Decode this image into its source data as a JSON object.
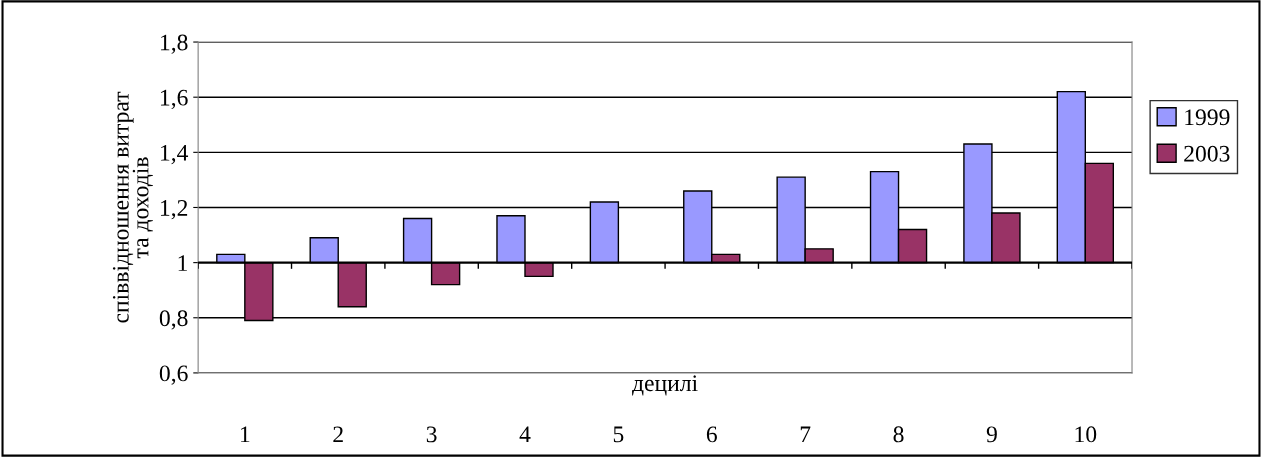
{
  "chart_data": {
    "type": "bar",
    "ylabel": "співвідношення витрат\nта доходів",
    "xlabel": "децилі",
    "categories": [
      "1",
      "2",
      "3",
      "4",
      "5",
      "6",
      "7",
      "8",
      "9",
      "10"
    ],
    "series": [
      {
        "name": "1999",
        "color": "#9999ff",
        "base": [
          1,
          1,
          1,
          1,
          1,
          1,
          1,
          1,
          1,
          1
        ],
        "values": [
          0.03,
          0.09,
          0.16,
          0.17,
          0.22,
          0.26,
          0.31,
          0.33,
          0.43,
          0.62
        ]
      },
      {
        "name": "2003",
        "color": "#993366",
        "base": [
          1,
          1,
          1,
          1,
          null,
          1,
          1,
          1,
          1,
          1
        ],
        "values": [
          -0.21,
          -0.16,
          -0.08,
          -0.05,
          null,
          0.03,
          0.05,
          0.12,
          0.18,
          0.36
        ]
      }
    ],
    "ref_lines": [
      {
        "axis": "y",
        "value": 1,
        "color": "#000000"
      }
    ],
    "ylim": [
      0.6,
      1.8
    ],
    "yticks": [
      {
        "value": 0.6,
        "label": "0,6"
      },
      {
        "value": 0.8,
        "label": "0,8"
      },
      {
        "value": 1,
        "label": "1"
      },
      {
        "value": 1.2,
        "label": "1,2"
      },
      {
        "value": 1.4,
        "label": "1,4"
      },
      {
        "value": 1.6,
        "label": "1,6"
      },
      {
        "value": 1.8,
        "label": "1,8"
      }
    ],
    "grid": "y",
    "legend": "right"
  }
}
